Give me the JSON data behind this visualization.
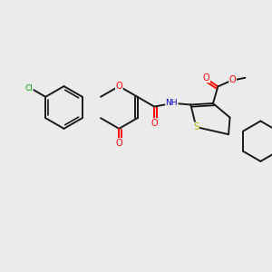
{
  "background_color": "#ebebeb",
  "bond_color": "#1a1a1a",
  "atom_colors": {
    "O": "#ff0000",
    "N": "#0000cc",
    "S": "#bbbb00",
    "Cl": "#00aa00",
    "C": "#1a1a1a"
  },
  "figsize": [
    3.0,
    3.0
  ],
  "dpi": 100,
  "xlim": [
    0,
    10
  ],
  "ylim": [
    0,
    10
  ]
}
